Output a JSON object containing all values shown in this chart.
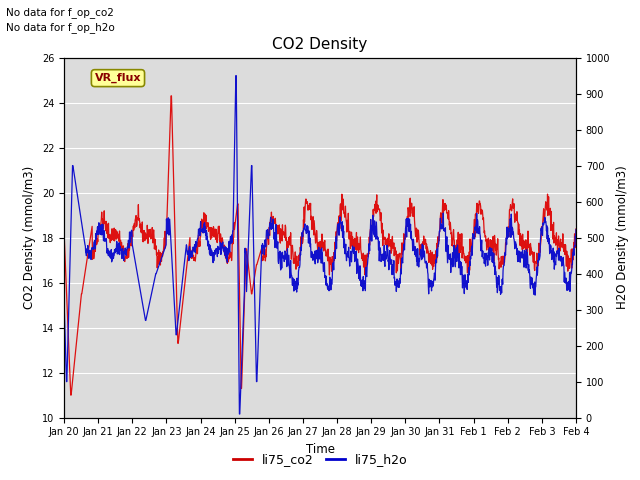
{
  "title": "CO2 Density",
  "xlabel": "Time",
  "ylabel_left": "CO2 Density (mmol/m3)",
  "ylabel_right": "H2O Density (mmol/m3)",
  "ylim_left": [
    10,
    26
  ],
  "ylim_right": [
    0,
    1000
  ],
  "yticks_left": [
    10,
    12,
    14,
    16,
    18,
    20,
    22,
    24,
    26
  ],
  "yticks_right": [
    0,
    100,
    200,
    300,
    400,
    500,
    600,
    700,
    800,
    900,
    1000
  ],
  "legend_labels": [
    "li75_co2",
    "li75_h2o"
  ],
  "legend_colors": [
    "#cc0000",
    "#0000cc"
  ],
  "no_data_texts": [
    "No data for f_op_co2",
    "No data for f_op_h2o"
  ],
  "vr_flux_label": "VR_flux",
  "background_color": "#dcdcdc",
  "line_color_co2": "#dd1111",
  "line_color_h2o": "#1111cc",
  "x_tick_labels": [
    "Jan 20",
    "Jan 21",
    "Jan 22",
    "Jan 23",
    "Jan 24",
    "Jan 25",
    "Jan 26",
    "Jan 27",
    "Jan 28",
    "Jan 29",
    "Jan 30",
    "Jan 31",
    "Feb 1",
    "Feb 2",
    "Feb 3",
    "Feb 4"
  ]
}
